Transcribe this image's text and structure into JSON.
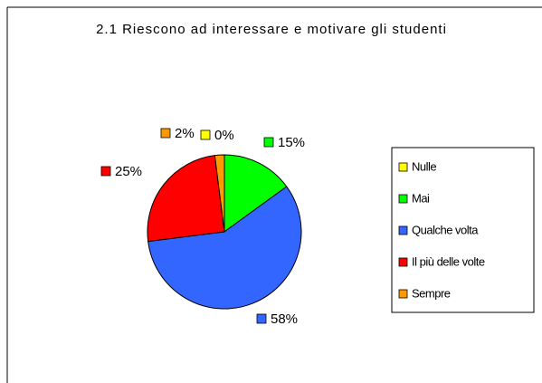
{
  "chart_data": {
    "type": "pie",
    "title": "2.1 Riescono ad interessare e motivare gli studenti",
    "categories": [
      "Nulle",
      "Mai",
      "Qualche volta",
      "Il più delle volte",
      "Sempre"
    ],
    "values": [
      0,
      15,
      58,
      25,
      2
    ],
    "value_labels": [
      "0%",
      "15%",
      "58%",
      "25%",
      "2%"
    ],
    "colors": [
      "#ffff00",
      "#00ff00",
      "#3366ff",
      "#ff0000",
      "#ff9900"
    ],
    "legend": "right"
  }
}
